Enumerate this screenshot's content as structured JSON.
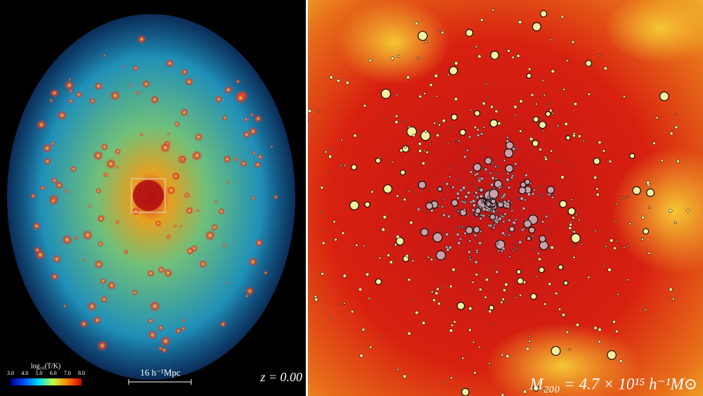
{
  "left_panel": {
    "colorbar": {
      "label": "log₁₀(T/K)",
      "ticks": [
        "3.0",
        "4.0",
        "5.0",
        "6.0",
        "7.0",
        "8.0"
      ]
    },
    "scale_bar": "16 h⁻¹Mpc",
    "redshift": "z = 0.00"
  },
  "right_panel": {
    "mass_label": "M₂₀₀ = 4.7 × 10¹⁵ h⁻¹M⊙"
  }
}
